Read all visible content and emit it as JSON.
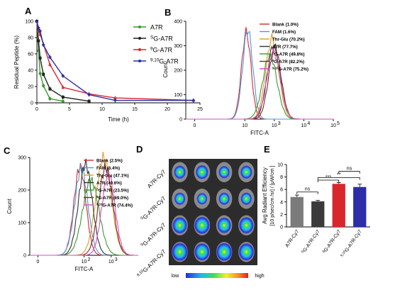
{
  "chart_data": [
    {
      "panel": "A",
      "type": "line",
      "xlabel": "Time (h)",
      "ylabel": "Residual Peptide (%)",
      "xlim": [
        0,
        25
      ],
      "ylim": [
        0,
        100
      ],
      "xticks": [
        "0",
        "5",
        "10",
        "15",
        "20",
        "25"
      ],
      "yticks": [
        "0",
        "20",
        "40",
        "60",
        "80",
        "100"
      ],
      "legend_position": "top-right",
      "series": [
        {
          "name": "A7R",
          "sup": "",
          "color": "#3b9a2e",
          "x": [
            0,
            0.25,
            0.5,
            1,
            2,
            4
          ],
          "y": [
            100,
            64,
            36,
            21,
            5,
            2
          ]
        },
        {
          "name": "G-A7R",
          "sup": "S",
          "color": "#222222",
          "x": [
            0,
            0.25,
            0.5,
            1,
            2,
            4,
            8
          ],
          "y": [
            100,
            76,
            55,
            35,
            17,
            7,
            2
          ]
        },
        {
          "name": "G-A7R",
          "sup": "9",
          "color": "#d8262d",
          "x": [
            0,
            0.25,
            0.5,
            1,
            2,
            4,
            8,
            12,
            24
          ],
          "y": [
            100,
            88,
            84,
            72,
            47,
            19,
            11,
            6,
            3
          ]
        },
        {
          "name": "G-A7R",
          "sup": "9,10",
          "color": "#2b2ea8",
          "x": [
            0,
            0.25,
            0.5,
            1,
            2,
            4,
            8,
            12,
            24
          ],
          "y": [
            100,
            92,
            88,
            71,
            56,
            33,
            10,
            3,
            3
          ]
        }
      ]
    },
    {
      "panel": "B",
      "type": "area",
      "xlabel": "FITC-A",
      "ylabel": "Count",
      "ylim": [
        0,
        400
      ],
      "yticks": [
        "0",
        "100",
        "200",
        "300",
        "400"
      ],
      "xticks": [
        "0",
        "10",
        "10",
        "10",
        "10"
      ],
      "xtick_sups": [
        "",
        "",
        "3",
        "4",
        "5"
      ],
      "legend": [
        {
          "label": "Blank (1.0%)",
          "sup": "",
          "color": "#d8262d"
        },
        {
          "label": "FAM (1.6%)",
          "sup": "",
          "color": "#4a9ad8"
        },
        {
          "label": "Thr-Glu (70.2%)",
          "sup": "",
          "color": "#e59a2d"
        },
        {
          "label": "A7R (77.7%)",
          "sup": "",
          "color": "#333333"
        },
        {
          "label": "G-A7R (49.8%)",
          "sup": "S",
          "color": "#3b9a2e"
        },
        {
          "label": "G-A7R (82.2%)",
          "sup": "9",
          "color": "#7a2a20"
        },
        {
          "label": "G-A7R (75.2%)",
          "sup": "9,10",
          "color": "#d24ec2"
        }
      ],
      "peaks": [
        {
          "color": "#d8262d",
          "mu": 2.05,
          "sigma": 0.16,
          "height": 355
        },
        {
          "color": "#4a9ad8",
          "mu": 2.1,
          "sigma": 0.17,
          "height": 365
        },
        {
          "color": "#e59a2d",
          "mu": 2.93,
          "sigma": 0.22,
          "height": 330
        },
        {
          "color": "#333333",
          "mu": 2.98,
          "sigma": 0.22,
          "height": 300
        },
        {
          "color": "#3b9a2e",
          "mu": 2.85,
          "sigma": 0.24,
          "height": 260
        },
        {
          "color": "#7a2a20",
          "mu": 3.02,
          "sigma": 0.21,
          "height": 290
        },
        {
          "color": "#d24ec2",
          "mu": 2.97,
          "sigma": 0.23,
          "height": 275
        }
      ]
    },
    {
      "panel": "C",
      "type": "area",
      "xlabel": "FITC-A",
      "ylabel": "Count",
      "ylim": [
        0,
        300
      ],
      "yticks": [
        "0",
        "100",
        "200",
        "300"
      ],
      "xticks": [
        "0",
        "10",
        "10"
      ],
      "xtick_sups": [
        "",
        "2",
        "3"
      ],
      "legend": [
        {
          "label": "Blank (2.5%)",
          "sup": "",
          "color": "#d8262d"
        },
        {
          "label": "FAM (6.4%)",
          "sup": "",
          "color": "#4a9ad8"
        },
        {
          "label": "Thr-Glu (47.1%)",
          "sup": "",
          "color": "#e59a2d"
        },
        {
          "label": "A7R (40.6%)",
          "sup": "",
          "color": "#333333"
        },
        {
          "label": "G-A7R (23.5%)",
          "sup": "S",
          "color": "#3b9a2e"
        },
        {
          "label": "G-A7R (69.0%)",
          "sup": "9",
          "color": "#7a2a20"
        },
        {
          "label": "G-A7R (74.4%)",
          "sup": "9,10",
          "color": "#d24ec2"
        }
      ],
      "peaks": [
        {
          "color": "#d8262d",
          "mu": 1.85,
          "sigma": 0.22,
          "height": 270
        },
        {
          "color": "#4a9ad8",
          "mu": 1.9,
          "sigma": 0.24,
          "height": 265
        },
        {
          "color": "#e59a2d",
          "mu": 2.72,
          "sigma": 0.28,
          "height": 300
        },
        {
          "color": "#333333",
          "mu": 2.05,
          "sigma": 0.25,
          "height": 280
        },
        {
          "color": "#3b9a2e",
          "mu": 2.25,
          "sigma": 0.3,
          "height": 230
        },
        {
          "color": "#7a2a20",
          "mu": 2.8,
          "sigma": 0.26,
          "height": 270
        },
        {
          "color": "#d24ec2",
          "mu": 2.9,
          "sigma": 0.24,
          "height": 250
        }
      ]
    },
    {
      "panel": "D",
      "type": "image",
      "row_labels": [
        {
          "text": "A7R-Cy7",
          "sup": ""
        },
        {
          "text": "G-A7R-Cy7",
          "sup": "S"
        },
        {
          "text": "G-A7R-Cy7",
          "sup": "9"
        },
        {
          "text": "G-A7R-Cy7",
          "sup": "9,10"
        }
      ],
      "intensity": [
        [
          0.55,
          0.6,
          0.5,
          0.55
        ],
        [
          0.5,
          0.45,
          0.5,
          0.5
        ],
        [
          0.75,
          0.8,
          0.7,
          0.75
        ],
        [
          0.85,
          0.8,
          0.85,
          0.8
        ]
      ],
      "scale_low": "low",
      "scale_high": "high"
    },
    {
      "panel": "E",
      "type": "bar",
      "ylabel": "Avg Radiant Efficiency",
      "ylabel2": "[10  p/sec/cm /sr] / [μW/cm ]",
      "ylim": [
        0,
        10
      ],
      "yticks": [
        "0",
        "2",
        "4",
        "6",
        "8",
        "10"
      ],
      "categories": [
        {
          "text": "A7R-Cy7",
          "sup": ""
        },
        {
          "text": "G-A7R-Cy7",
          "sup": "S"
        },
        {
          "text": "G-A7R-Cy7",
          "sup": "9"
        },
        {
          "text": "G-A7R-Cy7",
          "sup": "9,10"
        }
      ],
      "values": [
        4.8,
        4.1,
        6.9,
        6.4
      ],
      "errors": [
        0.3,
        0.15,
        0.2,
        0.45
      ],
      "colors": [
        "#7b7b7b",
        "#3a3a3a",
        "#d8262d",
        "#2b2ea8"
      ],
      "significance": [
        {
          "from": 0,
          "to": 1,
          "label": "ns",
          "level": 5.6
        },
        {
          "from": 1,
          "to": 2,
          "label": "***",
          "level": 7.5
        },
        {
          "from": 2,
          "to": 3,
          "label": "ns",
          "level": 8.9
        },
        {
          "from": 1,
          "to": 3,
          "label": "**",
          "level": 7.9
        }
      ]
    }
  ],
  "panels": {
    "a": "A",
    "b": "B",
    "c": "C",
    "d": "D",
    "e": "E"
  }
}
